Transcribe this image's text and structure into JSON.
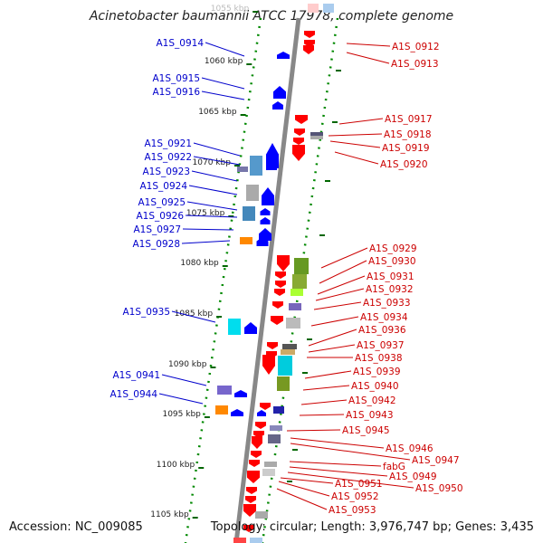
{
  "title": "Acinetobacter baumannii ATCC 17978, complete genome",
  "accession": "Accession: NC_009085",
  "topology": "Topology: circular; Length: 3,976,747 bp; Genes: 3,435",
  "colors": {
    "forward": "#ff0000",
    "reverse": "#0000ff",
    "backbone": "#888888",
    "dots": "#008800"
  },
  "kbp_labels": [
    {
      "text": "1055 kbp"
    },
    {
      "text": "1060 kbp"
    },
    {
      "text": "1065 kbp"
    },
    {
      "text": "1070 kbp"
    },
    {
      "text": "1075 kbp"
    },
    {
      "text": "1080 kbp"
    },
    {
      "text": "1085 kbp"
    },
    {
      "text": "1090 kbp"
    },
    {
      "text": "1095 kbp"
    },
    {
      "text": "1100 kbp"
    },
    {
      "text": "1105 kbp"
    }
  ],
  "left_genes": [
    "A1S_0914",
    "A1S_0915",
    "A1S_0916",
    "A1S_0921",
    "A1S_0922",
    "A1S_0923",
    "A1S_0924",
    "A1S_0925",
    "A1S_0926",
    "A1S_0927",
    "A1S_0928",
    "A1S_0935",
    "A1S_0941",
    "A1S_0944"
  ],
  "right_genes": [
    "A1S_0912",
    "A1S_0913",
    "A1S_0917",
    "A1S_0918",
    "A1S_0919",
    "A1S_0920",
    "A1S_0929",
    "A1S_0930",
    "A1S_0931",
    "A1S_0932",
    "A1S_0933",
    "A1S_0934",
    "A1S_0936",
    "A1S_0937",
    "A1S_0938",
    "A1S_0939",
    "A1S_0940",
    "A1S_0942",
    "A1S_0943",
    "A1S_0945",
    "A1S_0946",
    "A1S_0947",
    "fabG",
    "A1S_0949",
    "A1S_0950",
    "A1S_0951",
    "A1S_0952",
    "A1S_0953"
  ]
}
